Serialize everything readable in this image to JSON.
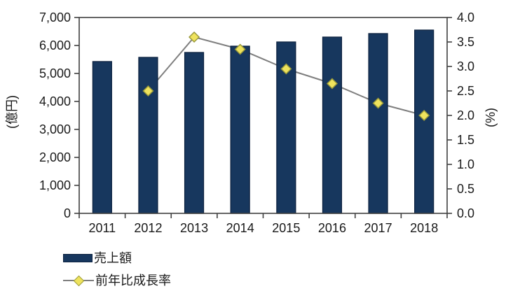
{
  "chart_data": {
    "type": "bar",
    "subtype": "combo-bar-line-dual-axis",
    "categories": [
      "2011",
      "2012",
      "2013",
      "2014",
      "2015",
      "2016",
      "2017",
      "2018"
    ],
    "series": [
      {
        "name": "売上額",
        "type": "bar",
        "axis": "left",
        "values": [
          5425,
          5575,
          5750,
          5975,
          6125,
          6300,
          6425,
          6550
        ]
      },
      {
        "name": "前年比成長率",
        "type": "line",
        "axis": "right",
        "values": [
          null,
          2.5,
          3.6,
          3.35,
          2.95,
          2.65,
          2.25,
          2.0
        ]
      }
    ],
    "title": "",
    "xlabel": "",
    "left_axis": {
      "title": "(億円)",
      "min": 0,
      "max": 7000,
      "step": 1000,
      "tick_labels": [
        "0",
        "1,000",
        "2,000",
        "3,000",
        "4,000",
        "5,000",
        "6,000",
        "7,000"
      ]
    },
    "right_axis": {
      "title": "(%)",
      "min": 0,
      "max": 4,
      "step": 0.5,
      "tick_labels": [
        "0.0",
        "0.5",
        "1.0",
        "1.5",
        "2.0",
        "2.5",
        "3.0",
        "3.5",
        "4.0"
      ]
    },
    "legend": [
      {
        "label": "売上額",
        "swatch": "bar"
      },
      {
        "label": "前年比成長率",
        "swatch": "line-diamond"
      }
    ],
    "layout": {
      "grid": "top-frame-only",
      "legend_position": "bottom-left",
      "line_behind_bars": true
    },
    "colors": {
      "bar_fill": "#17375E",
      "bar_border": "#0D2240",
      "line": "#7F7F7F",
      "marker_fill": "#EFE35D",
      "marker_border": "#99993B",
      "axis": "#404040",
      "text": "#1A1A1A",
      "background": "#FFFFFF"
    }
  }
}
